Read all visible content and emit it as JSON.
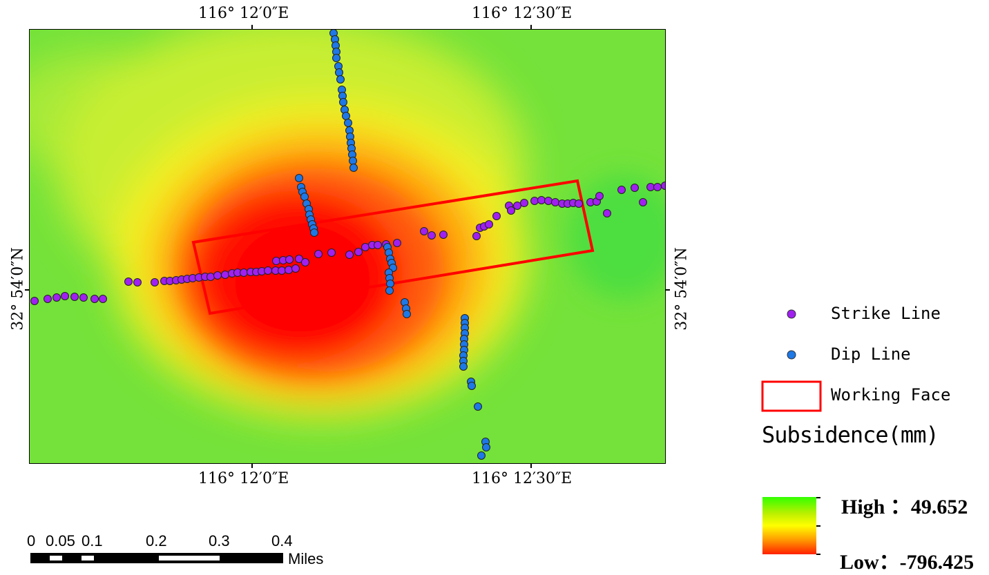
{
  "axes": {
    "top_left_lon": "116° 12′0″E",
    "top_right_lon": "116° 12′30″E",
    "bottom_left_lon": "116° 12′0″E",
    "bottom_right_lon": "116° 12′30″E",
    "left_lat": "32° 54′0″N",
    "right_lat": "32° 54′0″N"
  },
  "legend": {
    "strike_label": "Strike Line",
    "dip_label": "Dip Line",
    "face_label": "Working Face",
    "title": "Subsidence(mm)",
    "high_label": "High ：49.652",
    "low_label": "Low：-796.425",
    "colors": {
      "strike": "#a020f0",
      "dip": "#1e78e6",
      "face": "#ff0000",
      "high": "#33ff00",
      "mid": "#ffff00",
      "low": "#ff2000"
    }
  },
  "scalebar": {
    "labels": [
      "0",
      "0.05",
      "0.1",
      "0.2",
      "0.3",
      "0.4"
    ],
    "unit": "Miles"
  },
  "subsidence_range": {
    "high": 49.652,
    "low": -796.425
  }
}
